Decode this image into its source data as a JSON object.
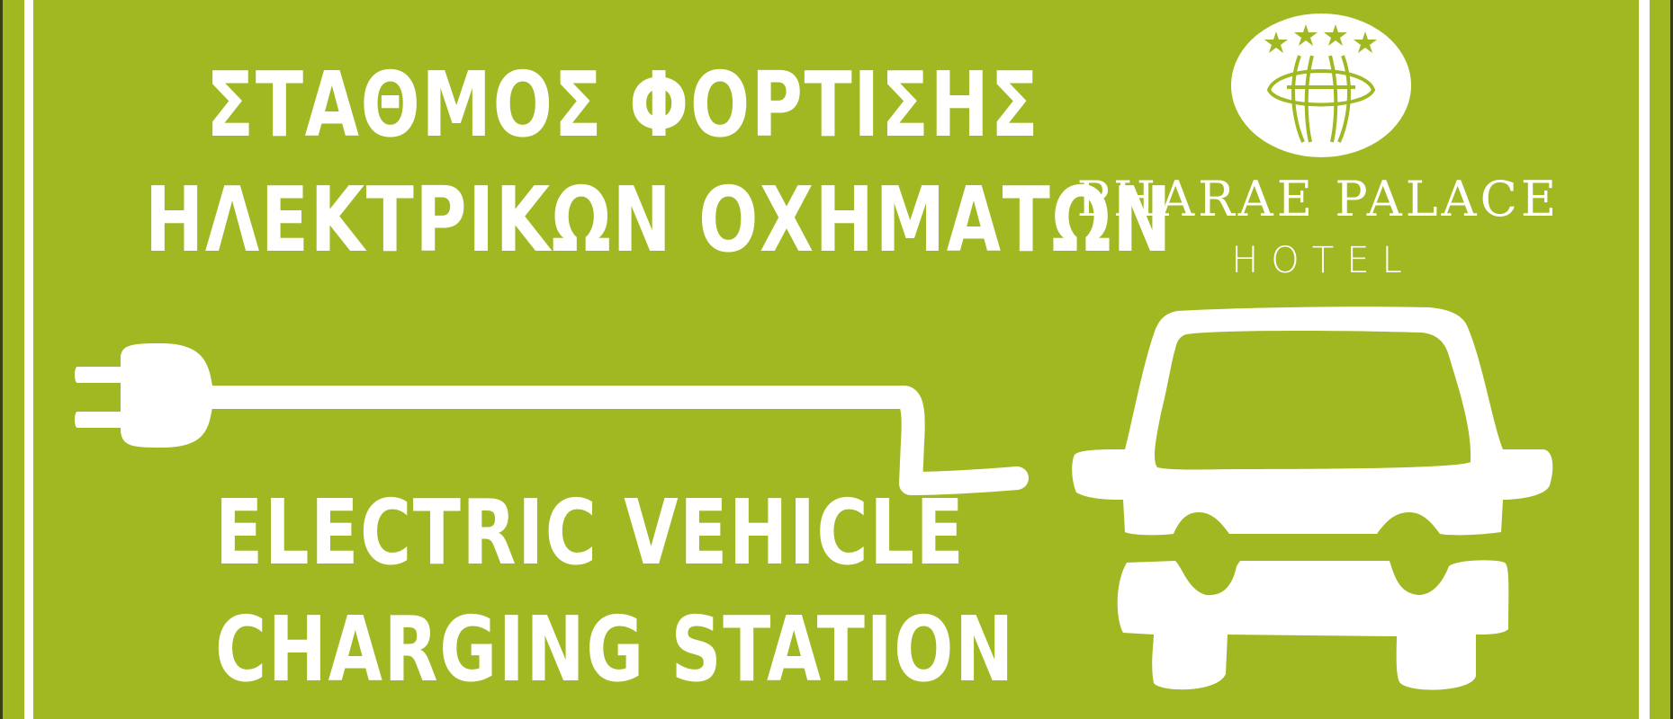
{
  "colors": {
    "background": "#a2b823",
    "foreground": "#ffffff",
    "frame_edge": "#3a3f12"
  },
  "sign": {
    "greek_line_1": "ΣΤΑΘΜΟΣ ΦΟΡΤΙΣΗΣ",
    "greek_line_2": "ΗΛΕΚΤΡΙΚΩΝ ΟΧΗΜΑΤΩΝ",
    "english_line_1": "ELECTRIC VEHICLE",
    "english_line_2": "CHARGING STATION"
  },
  "logo": {
    "name": "PHARAE PALACE",
    "subtitle": "HOTEL",
    "stars": 4
  },
  "icons": [
    "plug-icon",
    "charging-cable",
    "car-icon",
    "hotel-emblem-icon",
    "star-icon"
  ]
}
